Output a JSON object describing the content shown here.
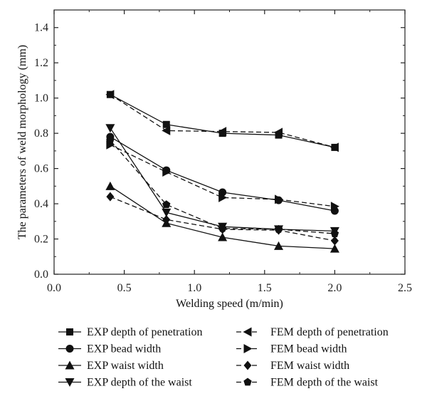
{
  "chart_data": {
    "type": "line",
    "title": "",
    "xlabel": "Welding speed (m/min)",
    "ylabel": "The parameters of weld morphology (mm)",
    "xlim": [
      0.0,
      2.5
    ],
    "ylim": [
      0.0,
      1.5
    ],
    "xticks": [
      "0.0",
      "0.5",
      "1.0",
      "1.5",
      "2.0",
      "2.5"
    ],
    "yticks": [
      "0.0",
      "0.2",
      "0.4",
      "0.6",
      "0.8",
      "1.0",
      "1.2",
      "1.4"
    ],
    "grid": false,
    "legend_position": "bottom",
    "x": [
      0.4,
      0.8,
      1.2,
      1.6,
      2.0
    ],
    "series": [
      {
        "name": "EXP depth of penetration",
        "values": [
          1.02,
          0.85,
          0.8,
          0.79,
          0.72
        ],
        "marker": "square",
        "dash": "solid"
      },
      {
        "name": "EXP bead width",
        "values": [
          0.78,
          0.59,
          0.465,
          0.42,
          0.36
        ],
        "marker": "circle",
        "dash": "solid"
      },
      {
        "name": "EXP waist width",
        "values": [
          0.5,
          0.29,
          0.21,
          0.16,
          0.145
        ],
        "marker": "triangle-up",
        "dash": "solid"
      },
      {
        "name": "EXP depth of the waist",
        "values": [
          0.83,
          0.35,
          0.27,
          0.255,
          0.245
        ],
        "marker": "triangle-down",
        "dash": "solid"
      },
      {
        "name": "FEM depth of penetration",
        "values": [
          1.02,
          0.815,
          0.81,
          0.805,
          0.72
        ],
        "marker": "triangle-left",
        "dash": "dashed"
      },
      {
        "name": "FEM bead width",
        "values": [
          0.735,
          0.58,
          0.435,
          0.425,
          0.385
        ],
        "marker": "triangle-right",
        "dash": "dashed"
      },
      {
        "name": "FEM waist width",
        "values": [
          0.44,
          0.31,
          0.255,
          0.25,
          0.19
        ],
        "marker": "diamond",
        "dash": "dashed"
      },
      {
        "name": "FEM depth of the waist",
        "values": [
          0.76,
          0.395,
          0.26,
          0.255,
          0.23
        ],
        "marker": "pentagon",
        "dash": "dashed"
      }
    ],
    "legend_order": [
      0,
      4,
      1,
      5,
      2,
      6,
      3,
      7
    ]
  }
}
